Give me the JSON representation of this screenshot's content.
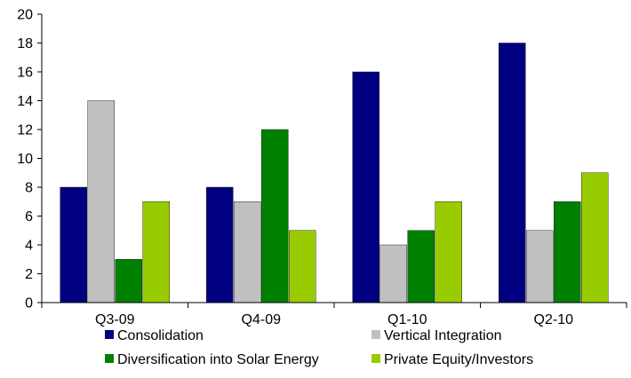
{
  "chart_data": {
    "type": "bar",
    "title": "",
    "xlabel": "",
    "ylabel": "",
    "ylim": [
      0,
      20
    ],
    "yticks": [
      0,
      2,
      4,
      6,
      8,
      10,
      12,
      14,
      16,
      18,
      20
    ],
    "grid": false,
    "legend_position": "bottom",
    "categories": [
      "Q3-09",
      "Q4-09",
      "Q1-10",
      "Q2-10"
    ],
    "series": [
      {
        "name": "Consolidation",
        "color": "#000080",
        "values": [
          8,
          8,
          16,
          18
        ]
      },
      {
        "name": "Vertical Integration",
        "color": "#c0c0c0",
        "values": [
          14,
          7,
          4,
          5
        ]
      },
      {
        "name": "Diversification into Solar Energy",
        "color": "#008000",
        "values": [
          3,
          12,
          5,
          7
        ]
      },
      {
        "name": "Private Equity/Investors",
        "color": "#99cc00",
        "values": [
          7,
          5,
          7,
          9
        ]
      }
    ]
  }
}
